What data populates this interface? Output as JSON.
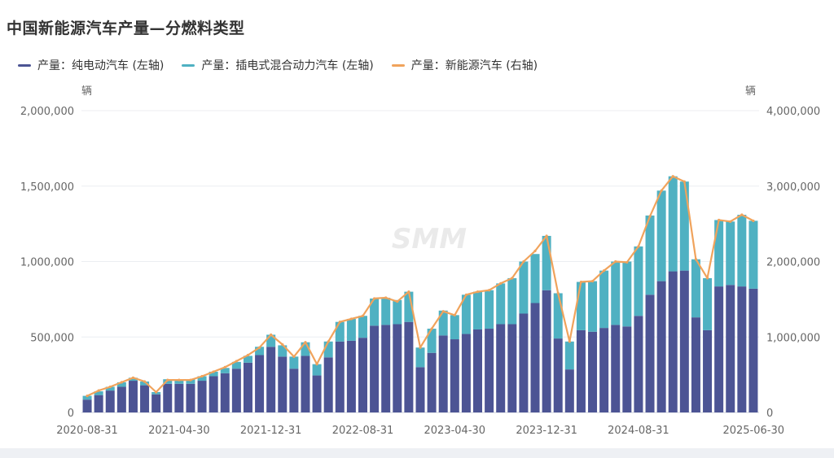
{
  "title": "中国新能源汽车产量—分燃料类型",
  "watermark": "SMM",
  "colors": {
    "bev": "#4c5494",
    "phev": "#4fb1c2",
    "total": "#f0a35c"
  },
  "chart_data": {
    "type": "bar",
    "stacked": true,
    "title": "中国新能源汽车产量—分燃料类型",
    "left_unit": "辆",
    "right_unit": "辆",
    "left_ylim": [
      0,
      2000000
    ],
    "right_ylim": [
      0,
      4000000
    ],
    "left_ticks": [
      "0",
      "500,000",
      "1,000,000",
      "1,500,000",
      "2,000,000"
    ],
    "right_ticks": [
      "0",
      "1,000,000",
      "2,000,000",
      "3,000,000",
      "4,000,000"
    ],
    "x_tick_labels": [
      "2020-08-31",
      "2021-04-30",
      "2021-12-31",
      "2022-08-31",
      "2023-04-30",
      "2023-12-31",
      "2024-08-31",
      "2025-06-30"
    ],
    "x_tick_indices": [
      0,
      8,
      16,
      24,
      32,
      40,
      48,
      58
    ],
    "grid": true,
    "legend_position": "top-left",
    "categories": [
      "2020-08",
      "2020-09",
      "2020-10",
      "2020-11",
      "2020-12",
      "2021-01",
      "2021-02",
      "2021-03",
      "2021-04",
      "2021-05",
      "2021-06",
      "2021-07",
      "2021-08",
      "2021-09",
      "2021-10",
      "2021-11",
      "2021-12",
      "2022-01",
      "2022-02",
      "2022-03",
      "2022-04",
      "2022-05",
      "2022-06",
      "2022-07",
      "2022-08",
      "2022-09",
      "2022-10",
      "2022-11",
      "2022-12",
      "2023-01",
      "2023-02",
      "2023-03",
      "2023-04",
      "2023-05",
      "2023-06",
      "2023-07",
      "2023-08",
      "2023-09",
      "2023-10",
      "2023-11",
      "2023-12",
      "2024-01",
      "2024-02",
      "2024-03",
      "2024-04",
      "2024-05",
      "2024-06",
      "2024-07",
      "2024-08",
      "2024-09",
      "2024-10",
      "2024-11",
      "2024-12",
      "2025-01",
      "2025-02",
      "2025-03",
      "2025-04",
      "2025-05",
      "2025-06"
    ],
    "series": [
      {
        "name": "产量：纯电动汽车 (左轴)",
        "axis": "left",
        "kind": "bar",
        "values": [
          85000,
          115000,
          145000,
          170000,
          210000,
          180000,
          120000,
          190000,
          190000,
          190000,
          210000,
          240000,
          260000,
          290000,
          330000,
          380000,
          435000,
          370000,
          290000,
          375000,
          245000,
          365000,
          470000,
          475000,
          495000,
          575000,
          580000,
          585000,
          600000,
          300000,
          395000,
          510000,
          485000,
          520000,
          550000,
          555000,
          585000,
          585000,
          655000,
          725000,
          810000,
          490000,
          285000,
          545000,
          535000,
          560000,
          580000,
          570000,
          640000,
          780000,
          870000,
          935000,
          940000,
          630000,
          545000,
          835000,
          845000,
          835000,
          820000
        ]
      },
      {
        "name": "产量：插电式混合动力汽车 (左轴)",
        "axis": "left",
        "kind": "bar",
        "values": [
          25000,
          25000,
          25000,
          30000,
          20000,
          25000,
          15000,
          30000,
          30000,
          30000,
          30000,
          30000,
          35000,
          45000,
          45000,
          55000,
          80000,
          75000,
          80000,
          90000,
          75000,
          105000,
          130000,
          145000,
          145000,
          180000,
          180000,
          160000,
          200000,
          130000,
          160000,
          165000,
          160000,
          260000,
          250000,
          255000,
          270000,
          305000,
          345000,
          325000,
          360000,
          300000,
          185000,
          320000,
          335000,
          380000,
          420000,
          430000,
          460000,
          525000,
          600000,
          630000,
          590000,
          385000,
          345000,
          440000,
          420000,
          475000,
          450000
        ]
      },
      {
        "name": "产量：新能源汽车 (右轴)",
        "axis": "right",
        "kind": "line",
        "values": [
          220000,
          290000,
          340000,
          400000,
          460000,
          410000,
          270000,
          430000,
          430000,
          430000,
          480000,
          540000,
          600000,
          680000,
          760000,
          860000,
          1030000,
          900000,
          740000,
          930000,
          640000,
          940000,
          1200000,
          1240000,
          1280000,
          1510000,
          1520000,
          1470000,
          1600000,
          860000,
          1110000,
          1340000,
          1290000,
          1560000,
          1600000,
          1620000,
          1710000,
          1780000,
          2000000,
          2140000,
          2340000,
          1580000,
          940000,
          1730000,
          1740000,
          1880000,
          2000000,
          1990000,
          2200000,
          2600000,
          2940000,
          3130000,
          3060000,
          2030000,
          1780000,
          2550000,
          2530000,
          2620000,
          2540000
        ]
      }
    ]
  }
}
